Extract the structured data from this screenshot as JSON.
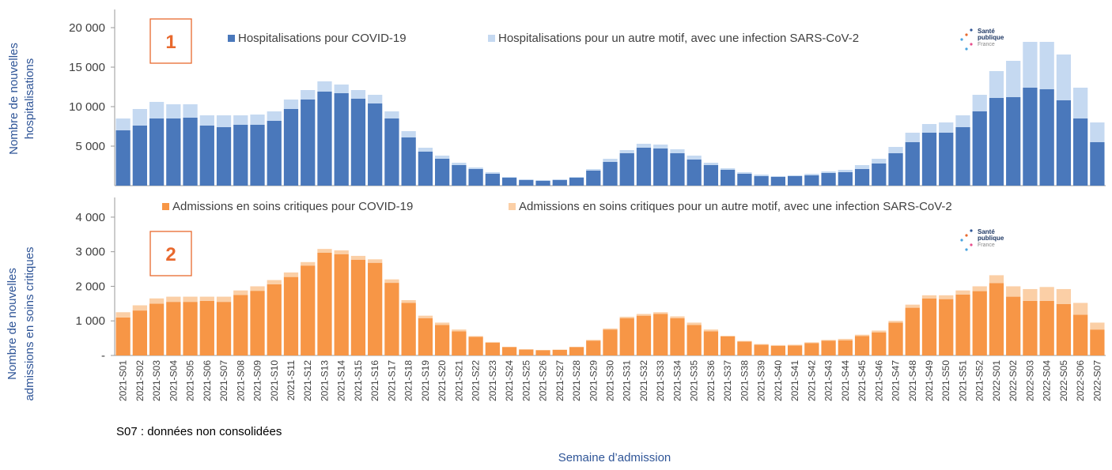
{
  "chart_data": [
    {
      "type": "bar",
      "stacked": true,
      "y_label": [
        "Nombre de nouvelles",
        "hospitalisations"
      ],
      "annotation": "1",
      "logo": [
        "Santé",
        "publique",
        "France"
      ],
      "ylim": [
        0,
        22000
      ],
      "yticks": [
        {
          "value": 5000,
          "label": "5 000"
        },
        {
          "value": 10000,
          "label": "10 000"
        },
        {
          "value": 15000,
          "label": "15 000"
        },
        {
          "value": 20000,
          "label": "20 000"
        }
      ],
      "series": [
        {
          "name": "Hospitalisations pour COVID-19",
          "color": "#4a78bb",
          "values": [
            7000,
            7600,
            8500,
            8500,
            8600,
            7600,
            7400,
            7700,
            7700,
            8200,
            9700,
            10900,
            11900,
            11700,
            11000,
            10400,
            8500,
            6100,
            4300,
            3400,
            2600,
            2100,
            1500,
            1000,
            700,
            600,
            700,
            1000,
            1900,
            3000,
            4100,
            4800,
            4700,
            4100,
            3300,
            2600,
            2000,
            1500,
            1200,
            1100,
            1200,
            1300,
            1600,
            1700,
            2100,
            2800,
            4100,
            5500,
            6700,
            6700,
            7400,
            9400,
            11100,
            11200,
            12400,
            12200,
            10800,
            8500,
            5500
          ]
        },
        {
          "name": "Hospitalisations pour un autre motif, avec une infection SARS-CoV-2",
          "color": "#c5d9f1",
          "values": [
            1500,
            2100,
            2100,
            1800,
            1700,
            1300,
            1500,
            1200,
            1300,
            1200,
            1200,
            1200,
            1300,
            1100,
            1100,
            1100,
            900,
            800,
            500,
            400,
            300,
            200,
            200,
            100,
            100,
            100,
            100,
            100,
            200,
            400,
            400,
            500,
            500,
            500,
            500,
            300,
            200,
            200,
            200,
            100,
            100,
            200,
            200,
            300,
            500,
            600,
            800,
            1200,
            1100,
            1300,
            1500,
            2100,
            3400,
            4600,
            5800,
            6000,
            5800,
            3900,
            2500
          ]
        }
      ]
    },
    {
      "type": "bar",
      "stacked": true,
      "y_label": [
        "Nombre de nouvelles",
        "admissions en soins critiques"
      ],
      "annotation": "2",
      "logo": [
        "Santé",
        "publique",
        "France"
      ],
      "ylim": [
        0,
        4500
      ],
      "yticks": [
        {
          "value": 0,
          "label": "-"
        },
        {
          "value": 1000,
          "label": "1 000"
        },
        {
          "value": 2000,
          "label": "2 000"
        },
        {
          "value": 3000,
          "label": "3 000"
        },
        {
          "value": 4000,
          "label": "4 000"
        }
      ],
      "categories": [
        "2021-S01",
        "2021-S02",
        "2021-S03",
        "2021-S04",
        "2021-S05",
        "2021-S06",
        "2021-S07",
        "2021-S08",
        "2021-S09",
        "2021-S10",
        "2021-S11",
        "2021-S12",
        "2021-S13",
        "2021-S14",
        "2021-S15",
        "2021-S16",
        "2021-S17",
        "2021-S18",
        "2021-S19",
        "2021-S20",
        "2021-S21",
        "2021-S22",
        "2021-S23",
        "2021-S24",
        "2021-S25",
        "2021-S26",
        "2021-S27",
        "2021-S28",
        "2021-S29",
        "2021-S30",
        "2021-S31",
        "2021-S32",
        "2021-S33",
        "2021-S34",
        "2021-S35",
        "2021-S36",
        "2021-S37",
        "2021-S38",
        "2021-S39",
        "2021-S40",
        "2021-S41",
        "2021-S42",
        "2021-S43",
        "2021-S44",
        "2021-S45",
        "2021-S46",
        "2021-S47",
        "2021-S48",
        "2021-S49",
        "2021-S50",
        "2021-S51",
        "2021-S52",
        "2022-S01",
        "2022-S02",
        "2022-S03",
        "2022-S04",
        "2022-S05",
        "2022-S06",
        "2022-S07"
      ],
      "series": [
        {
          "name": "Admissions en soins critiques pour COVID-19",
          "color": "#f79646",
          "values": [
            1100,
            1300,
            1500,
            1550,
            1550,
            1580,
            1550,
            1750,
            1870,
            2060,
            2270,
            2600,
            2970,
            2930,
            2770,
            2680,
            2100,
            1520,
            1080,
            880,
            700,
            540,
            370,
            240,
            170,
            150,
            160,
            240,
            430,
            750,
            1080,
            1150,
            1200,
            1080,
            880,
            700,
            550,
            400,
            310,
            280,
            290,
            360,
            430,
            440,
            560,
            670,
            950,
            1380,
            1650,
            1630,
            1760,
            1860,
            2090,
            1700,
            1580,
            1580,
            1490,
            1180,
            750
          ]
        },
        {
          "name": "Admissions en soins critiques pour un autre motif, avec une infection SARS-CoV-2",
          "color": "#fbcfa6",
          "values": [
            150,
            150,
            150,
            150,
            150,
            120,
            150,
            130,
            130,
            120,
            130,
            100,
            110,
            110,
            110,
            100,
            100,
            80,
            70,
            70,
            50,
            20,
            20,
            10,
            10,
            10,
            10,
            10,
            20,
            30,
            40,
            50,
            50,
            50,
            70,
            50,
            20,
            20,
            20,
            20,
            20,
            20,
            20,
            40,
            40,
            50,
            50,
            90,
            90,
            110,
            120,
            140,
            230,
            300,
            340,
            400,
            430,
            340,
            200
          ]
        }
      ]
    }
  ],
  "note": "S07 : données non consolidées",
  "x_label": "Semaine d’admission"
}
